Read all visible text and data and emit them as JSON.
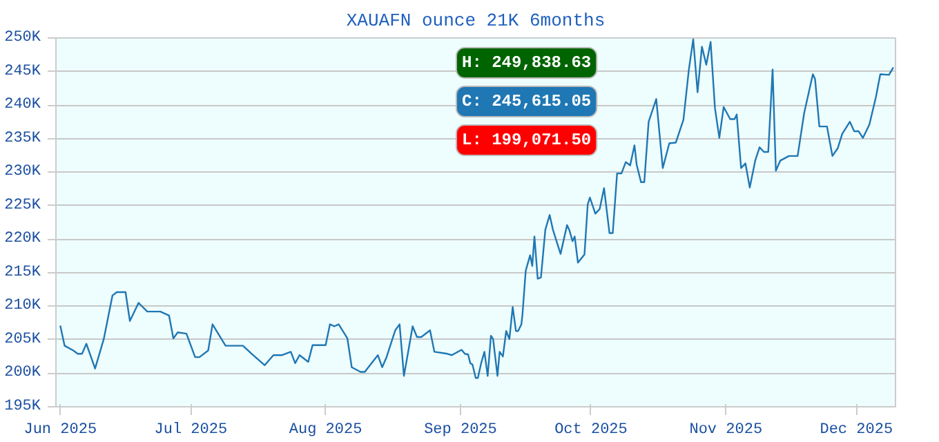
{
  "chart_data": {
    "type": "line",
    "title": "XAUAFN ounce 21K 6months",
    "grid": "y",
    "xlim": [
      "2025-05-31",
      "2025-12-10"
    ],
    "xticks": [
      {
        "value": "2025-06-01",
        "label": "Jun 2025"
      },
      {
        "value": "2025-07-01",
        "label": "Jul 2025"
      },
      {
        "value": "2025-08-01",
        "label": "Aug 2025"
      },
      {
        "value": "2025-09-01",
        "label": "Sep 2025"
      },
      {
        "value": "2025-10-01",
        "label": "Oct 2025"
      },
      {
        "value": "2025-11-01",
        "label": "Nov 2025"
      },
      {
        "value": "2025-12-01",
        "label": "Dec 2025"
      }
    ],
    "ylim": [
      195,
      250
    ],
    "yticks": [
      {
        "value": 195,
        "label": "195K"
      },
      {
        "value": 200,
        "label": "200K"
      },
      {
        "value": 205,
        "label": "205K"
      },
      {
        "value": 210,
        "label": "210K"
      },
      {
        "value": 215,
        "label": "215K"
      },
      {
        "value": 220,
        "label": "220K"
      },
      {
        "value": 225,
        "label": "225K"
      },
      {
        "value": 230,
        "label": "230K"
      },
      {
        "value": 235,
        "label": "235K"
      },
      {
        "value": 240,
        "label": "240K"
      },
      {
        "value": 245,
        "label": "245K"
      },
      {
        "value": 250,
        "label": "250K"
      }
    ],
    "annotations": [
      "H: 249,838.63",
      "C: 245,615.05",
      "L: 199,071.50"
    ],
    "series": [
      {
        "color": "#1f77b4",
        "x": [
          "2025-06-01",
          "2025-06-02",
          "2025-06-04",
          "2025-06-05",
          "2025-06-06",
          "2025-06-07",
          "2025-06-09",
          "2025-06-11",
          "2025-06-13",
          "2025-06-14",
          "2025-06-16",
          "2025-06-17",
          "2025-06-19",
          "2025-06-21",
          "2025-06-24",
          "2025-06-26",
          "2025-06-27",
          "2025-06-28",
          "2025-06-30",
          "2025-07-02",
          "2025-07-03",
          "2025-07-05",
          "2025-07-06",
          "2025-07-09",
          "2025-07-13",
          "2025-07-15",
          "2025-07-18",
          "2025-07-20",
          "2025-07-22",
          "2025-07-24",
          "2025-07-25",
          "2025-07-26",
          "2025-07-28",
          "2025-07-29",
          "2025-08-01",
          "2025-08-02",
          "2025-08-03",
          "2025-08-04",
          "2025-08-06",
          "2025-08-07",
          "2025-08-09",
          "2025-08-10",
          "2025-08-13",
          "2025-08-14",
          "2025-08-15",
          "2025-08-17",
          "2025-08-18",
          "2025-08-19",
          "2025-08-21",
          "2025-08-22",
          "2025-08-23",
          "2025-08-25",
          "2025-08-26",
          "2025-08-29",
          "2025-08-30",
          "2025-09-01T06:00",
          "2025-09-02",
          "2025-09-02T18:00",
          "2025-09-03T06:00",
          "2025-09-03T18:00",
          "2025-09-04T12:00",
          "2025-09-05",
          "2025-09-05T18:00",
          "2025-09-06T12:00",
          "2025-09-07T06:00",
          "2025-09-08",
          "2025-09-08T12:00",
          "2025-09-09T12:00",
          "2025-09-10",
          "2025-09-10T18:00",
          "2025-09-11T12:00",
          "2025-09-12T06:00",
          "2025-09-13",
          "2025-09-13T18:00",
          "2025-09-14T06:00",
          "2025-09-15",
          "2025-09-15T06:00",
          "2025-09-16",
          "2025-09-17",
          "2025-09-17T12:00",
          "2025-09-18",
          "2025-09-18T18:00",
          "2025-09-19T12:00",
          "2025-09-20T12:00",
          "2025-09-21T12:00",
          "2025-09-22T06:00",
          "2025-09-24",
          "2025-09-25T12:00",
          "2025-09-26",
          "2025-09-26T18:00",
          "2025-09-27T06:00",
          "2025-09-28",
          "2025-09-29T12:00",
          "2025-09-30T06:00",
          "2025-09-30T18:00",
          "2025-10-02",
          "2025-10-03",
          "2025-10-04",
          "2025-10-05T06:00",
          "2025-10-06",
          "2025-10-07",
          "2025-10-08",
          "2025-10-09",
          "2025-10-10",
          "2025-10-11",
          "2025-10-11T12:00",
          "2025-10-12T12:00",
          "2025-10-13T06:00",
          "2025-10-14T06:00",
          "2025-10-16",
          "2025-10-17T12:00",
          "2025-10-19",
          "2025-10-20T12:00",
          "2025-10-22T06:00",
          "2025-10-23T12:00",
          "2025-10-24T12:00",
          "2025-10-25T12:00",
          "2025-10-26T12:00",
          "2025-10-27T12:00",
          "2025-10-28T12:00",
          "2025-10-29T12:00",
          "2025-10-30T12:00",
          "2025-10-31T12:00",
          "2025-11-02",
          "2025-11-03",
          "2025-11-03T12:00",
          "2025-11-04T12:00",
          "2025-11-05T12:00",
          "2025-11-06T12:00",
          "2025-11-07T18:00",
          "2025-11-08T18:00",
          "2025-11-09T18:00",
          "2025-11-10T18:00",
          "2025-11-11T18:00",
          "2025-11-12T12:00",
          "2025-11-13T12:00",
          "2025-11-15T12:00",
          "2025-11-17T12:00",
          "2025-11-19",
          "2025-11-21",
          "2025-11-21T12:00",
          "2025-11-22T12:00",
          "2025-11-24T06:00",
          "2025-11-25T12:00",
          "2025-11-26T18:00",
          "2025-11-27T18:00",
          "2025-11-29T12:00",
          "2025-11-30T12:00",
          "2025-12-01T12:00",
          "2025-12-02T12:00",
          "2025-12-04",
          "2025-12-05T12:00",
          "2025-12-06T12:00",
          "2025-12-08T12:00",
          "2025-12-09T12:00"
        ],
        "values": [
          207.1,
          204.1,
          203.4,
          202.9,
          202.9,
          204.4,
          200.7,
          205.1,
          211.6,
          212.1,
          212.1,
          207.8,
          210.5,
          209.2,
          209.2,
          208.6,
          205.2,
          206.1,
          205.9,
          202.4,
          202.4,
          203.4,
          207.3,
          204.1,
          204.1,
          202.9,
          201.2,
          202.7,
          202.7,
          203.2,
          201.5,
          202.7,
          201.7,
          204.2,
          204.2,
          207.3,
          207.0,
          207.3,
          205.2,
          200.9,
          200.2,
          200.2,
          202.7,
          200.9,
          202.4,
          206.4,
          207.3,
          199.6,
          207.0,
          205.4,
          205.4,
          206.4,
          203.2,
          202.9,
          202.7,
          203.5,
          202.9,
          202.8,
          201.5,
          201.3,
          199.3,
          199.3,
          201.5,
          203.2,
          199.6,
          205.6,
          205.1,
          199.6,
          203.2,
          202.5,
          206.3,
          205.1,
          209.9,
          206.3,
          206.3,
          207.3,
          208.8,
          215.3,
          217.6,
          216.0,
          220.4,
          214.1,
          214.3,
          221.4,
          223.6,
          221.4,
          217.8,
          222.1,
          221.4,
          219.7,
          220.4,
          216.5,
          217.7,
          225.2,
          226.2,
          223.8,
          224.5,
          227.6,
          220.9,
          220.9,
          229.8,
          229.8,
          231.5,
          231.0,
          234.0,
          231.1,
          228.5,
          228.5,
          237.5,
          240.9,
          230.6,
          234.3,
          234.4,
          237.8,
          245.3,
          249.8,
          241.9,
          248.7,
          246.0,
          249.4,
          239.5,
          235.1,
          239.7,
          237.9,
          237.9,
          238.6,
          230.6,
          231.3,
          227.7,
          231.7,
          233.7,
          233.0,
          233.0,
          245.3,
          230.2,
          231.7,
          232.4,
          232.4,
          238.8,
          244.6,
          243.9,
          236.8,
          236.8,
          232.4,
          233.6,
          235.7,
          237.5,
          236.1,
          236.1,
          235.1,
          237.1,
          241.2,
          244.6,
          244.5,
          245.6
        ]
      }
    ]
  }
}
